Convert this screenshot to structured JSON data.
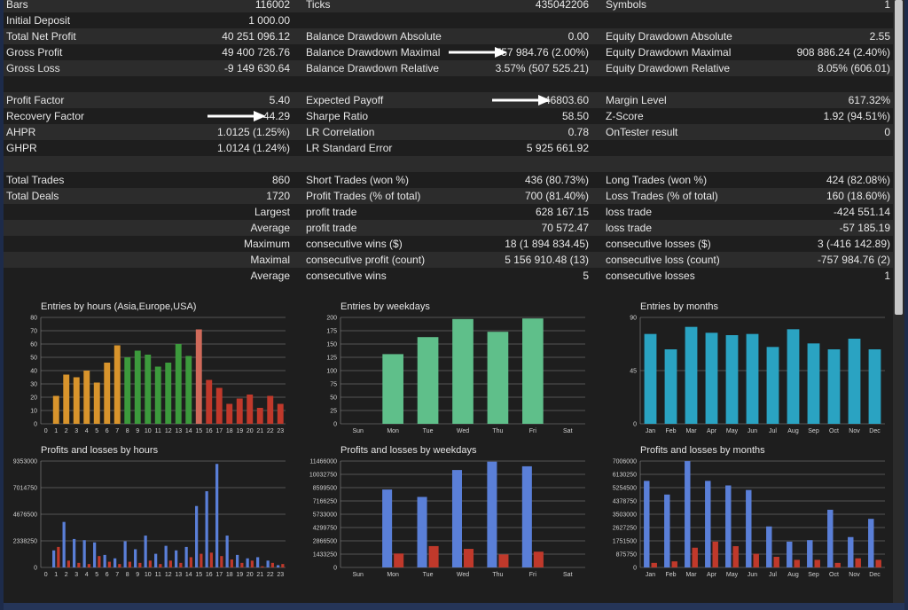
{
  "stats_rows": [
    {
      "c1": {
        "label": "Bars",
        "value": "116002"
      },
      "c2": {
        "label": "Ticks",
        "value": "435042206"
      },
      "c3": {
        "label": "Symbols",
        "value": "1"
      }
    },
    {
      "c1": {
        "label": "Initial Deposit",
        "value": "1 000.00"
      },
      "c2": {
        "label": "",
        "value": ""
      },
      "c3": {
        "label": "",
        "value": ""
      }
    },
    {
      "c1": {
        "label": "Total Net Profit",
        "value": "40 251 096.12"
      },
      "c2": {
        "label": "Balance Drawdown Absolute",
        "value": "0.00"
      },
      "c3": {
        "label": "Equity Drawdown Absolute",
        "value": "2.55"
      }
    },
    {
      "c1": {
        "label": "Gross Profit",
        "value": "49 400 726.76"
      },
      "c2": {
        "label": "Balance Drawdown Maximal",
        "value": "757 984.76 (2.00%)"
      },
      "c3": {
        "label": "Equity Drawdown Maximal",
        "value": "908 886.24 (2.40%)"
      }
    },
    {
      "c1": {
        "label": "Gross Loss",
        "value": "-9 149 630.64"
      },
      "c2": {
        "label": "Balance Drawdown Relative",
        "value": "3.57% (507 525.21)"
      },
      "c3": {
        "label": "Equity Drawdown Relative",
        "value": "8.05% (606.01)"
      }
    },
    {
      "c1": {
        "label": "",
        "value": ""
      },
      "c2": {
        "label": "",
        "value": ""
      },
      "c3": {
        "label": "",
        "value": ""
      }
    },
    {
      "c1": {
        "label": "Profit Factor",
        "value": "5.40"
      },
      "c2": {
        "label": "Expected Payoff",
        "value": "46803.60"
      },
      "c3": {
        "label": "Margin Level",
        "value": "617.32%"
      }
    },
    {
      "c1": {
        "label": "Recovery Factor",
        "value": "44.29"
      },
      "c2": {
        "label": "Sharpe Ratio",
        "value": "58.50"
      },
      "c3": {
        "label": "Z-Score",
        "value": "1.92 (94.51%)"
      }
    },
    {
      "c1": {
        "label": "AHPR",
        "value": "1.0125 (1.25%)"
      },
      "c2": {
        "label": "LR Correlation",
        "value": "0.78"
      },
      "c3": {
        "label": "OnTester result",
        "value": "0"
      }
    },
    {
      "c1": {
        "label": "GHPR",
        "value": "1.0124 (1.24%)"
      },
      "c2": {
        "label": "LR Standard Error",
        "value": "5 925 661.92"
      },
      "c3": {
        "label": "",
        "value": ""
      }
    },
    {
      "c1": {
        "label": "",
        "value": ""
      },
      "c2": {
        "label": "",
        "value": ""
      },
      "c3": {
        "label": "",
        "value": ""
      }
    },
    {
      "c1": {
        "label": "Total Trades",
        "value": "860"
      },
      "c2": {
        "label": "Short Trades (won %)",
        "value": "436 (80.73%)"
      },
      "c3": {
        "label": "Long Trades (won %)",
        "value": "424 (82.08%)"
      }
    },
    {
      "c1": {
        "label": "Total Deals",
        "value": "1720"
      },
      "c2": {
        "label": "Profit Trades (% of total)",
        "value": "700 (81.40%)"
      },
      "c3": {
        "label": "Loss Trades (% of total)",
        "value": "160 (18.60%)"
      }
    },
    {
      "c1": {
        "label": "",
        "value": "Largest"
      },
      "c2": {
        "label": "profit trade",
        "value": "628 167.15"
      },
      "c3": {
        "label": "loss trade",
        "value": "-424 551.14"
      }
    },
    {
      "c1": {
        "label": "",
        "value": "Average"
      },
      "c2": {
        "label": "profit trade",
        "value": "70 572.47"
      },
      "c3": {
        "label": "loss trade",
        "value": "-57 185.19"
      }
    },
    {
      "c1": {
        "label": "",
        "value": "Maximum"
      },
      "c2": {
        "label": "consecutive wins ($)",
        "value": "18 (1 894 834.45)"
      },
      "c3": {
        "label": "consecutive losses ($)",
        "value": "3 (-416 142.89)"
      }
    },
    {
      "c1": {
        "label": "",
        "value": "Maximal"
      },
      "c2": {
        "label": "consecutive profit (count)",
        "value": "5 156 910.48 (13)"
      },
      "c3": {
        "label": "consecutive loss (count)",
        "value": "-757 984.76 (2)"
      }
    },
    {
      "c1": {
        "label": "",
        "value": "Average"
      },
      "c2": {
        "label": "consecutive wins",
        "value": "5"
      },
      "c3": {
        "label": "consecutive losses",
        "value": "1"
      }
    }
  ],
  "chart_data": [
    {
      "type": "bar",
      "title": "Entries by hours (Asia,Europe,USA)",
      "categories": [
        "0",
        "1",
        "2",
        "3",
        "4",
        "5",
        "6",
        "7",
        "8",
        "9",
        "10",
        "11",
        "12",
        "13",
        "14",
        "15",
        "16",
        "17",
        "18",
        "19",
        "20",
        "21",
        "22",
        "23"
      ],
      "yticks": [
        "0",
        "10",
        "20",
        "30",
        "40",
        "50",
        "60",
        "70",
        "80"
      ],
      "ylim": [
        0,
        80
      ],
      "series": [
        {
          "values": [
            0,
            21,
            37,
            35,
            40,
            31,
            46,
            59,
            50,
            55,
            52,
            43,
            46,
            60,
            51,
            71,
            33,
            27,
            15,
            19,
            22,
            12,
            21,
            15
          ]
        }
      ],
      "colors": [
        "#d8942c",
        "#d8942c",
        "#d8942c",
        "#d8942c",
        "#d8942c",
        "#d8942c",
        "#d8942c",
        "#d8942c",
        "#3c9a3c",
        "#3c9a3c",
        "#3c9a3c",
        "#3c9a3c",
        "#3c9a3c",
        "#3c9a3c",
        "#3c9a3c",
        "#d06a5a",
        "#c0392b",
        "#c0392b",
        "#c0392b",
        "#c0392b",
        "#c0392b",
        "#c0392b",
        "#c0392b",
        "#c0392b"
      ]
    },
    {
      "type": "bar",
      "title": "Entries by weekdays",
      "categories": [
        "Sun",
        "Mon",
        "Tue",
        "Wed",
        "Thu",
        "Fri",
        "Sat"
      ],
      "yticks": [
        "0",
        "25",
        "50",
        "75",
        "100",
        "125",
        "150",
        "175",
        "200"
      ],
      "ylim": [
        0,
        200
      ],
      "series": [
        {
          "values": [
            0,
            131,
            163,
            197,
            173,
            198,
            0
          ]
        }
      ],
      "colors": [
        "#5fbf8a"
      ]
    },
    {
      "type": "bar",
      "title": "Entries by months",
      "categories": [
        "Jan",
        "Feb",
        "Mar",
        "Apr",
        "May",
        "Jun",
        "Jul",
        "Aug",
        "Sep",
        "Oct",
        "Nov",
        "Dec"
      ],
      "yticks": [
        "0",
        "45",
        "90"
      ],
      "ylim": [
        0,
        90
      ],
      "series": [
        {
          "values": [
            76,
            63,
            82,
            77,
            75,
            76,
            65,
            80,
            68,
            63,
            72,
            63
          ]
        }
      ],
      "colors": [
        "#2aa3c2"
      ]
    },
    {
      "type": "bar",
      "title": "Profits and losses by hours",
      "categories": [
        "0",
        "1",
        "2",
        "3",
        "4",
        "5",
        "6",
        "7",
        "8",
        "9",
        "10",
        "11",
        "12",
        "13",
        "14",
        "15",
        "16",
        "17",
        "18",
        "19",
        "20",
        "21",
        "22",
        "23"
      ],
      "yticks": [
        "0",
        "2338250",
        "4676500",
        "7014750",
        "9353000"
      ],
      "ylim": [
        0,
        9353000
      ],
      "series": [
        {
          "values": [
            0,
            1500000,
            4000000,
            2500000,
            2400000,
            2200000,
            1100000,
            800000,
            2300000,
            1600000,
            2800000,
            1200000,
            1900000,
            1500000,
            1800000,
            5400000,
            6700000,
            9100000,
            2800000,
            1100000,
            800000,
            900000,
            600000,
            200000
          ],
          "color": "#5a7fd8"
        },
        {
          "values": [
            0,
            1800000,
            600000,
            400000,
            300000,
            1000000,
            500000,
            300000,
            500000,
            400000,
            600000,
            300000,
            600000,
            400000,
            900000,
            1200000,
            1300000,
            1000000,
            700000,
            400000,
            600000,
            100000,
            400000,
            300000
          ],
          "color": "#c0392b"
        }
      ]
    },
    {
      "type": "bar",
      "title": "Profits and losses by weekdays",
      "categories": [
        "Sun",
        "Mon",
        "Tue",
        "Wed",
        "Thu",
        "Fri",
        "Sat"
      ],
      "yticks": [
        "0",
        "1433250",
        "2866500",
        "4299750",
        "5733000",
        "7166250",
        "8599500",
        "10032750",
        "11466000"
      ],
      "ylim": [
        0,
        11466000
      ],
      "series": [
        {
          "values": [
            0,
            8400000,
            7600000,
            10500000,
            11400000,
            10900000,
            0
          ],
          "color": "#5a7fd8"
        },
        {
          "values": [
            0,
            1500000,
            2300000,
            2000000,
            1400000,
            1700000,
            0
          ],
          "color": "#c0392b"
        }
      ]
    },
    {
      "type": "bar",
      "title": "Profits and losses by months",
      "categories": [
        "Jan",
        "Feb",
        "Mar",
        "Apr",
        "May",
        "Jun",
        "Jul",
        "Aug",
        "Sep",
        "Oct",
        "Nov",
        "Dec"
      ],
      "yticks": [
        "0",
        "875750",
        "1751500",
        "2627250",
        "3503000",
        "4378750",
        "5254500",
        "6130250",
        "7006000"
      ],
      "ylim": [
        0,
        7006000
      ],
      "series": [
        {
          "values": [
            5700000,
            4800000,
            7000000,
            5700000,
            5400000,
            5100000,
            2700000,
            1700000,
            1800000,
            3800000,
            2000000,
            3200000
          ],
          "color": "#5a7fd8"
        },
        {
          "values": [
            300000,
            400000,
            1300000,
            1700000,
            1400000,
            900000,
            700000,
            500000,
            500000,
            300000,
            600000,
            500000
          ],
          "color": "#c0392b"
        }
      ]
    }
  ]
}
